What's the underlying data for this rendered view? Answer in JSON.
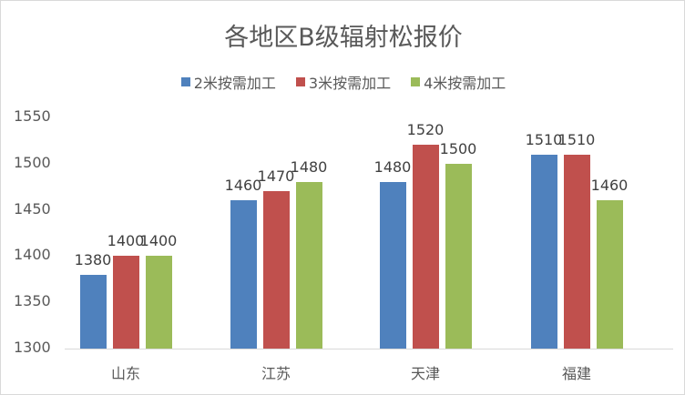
{
  "title": "各地区B级辐射松报价",
  "legend": [
    {
      "label": "2米按需加工",
      "color": "#4f81bd"
    },
    {
      "label": "3米按需加工",
      "color": "#c0504d"
    },
    {
      "label": "4米按需加工",
      "color": "#9bbb59"
    }
  ],
  "yticks": [
    "1550",
    "1500",
    "1450",
    "1400",
    "1350",
    "1300"
  ],
  "chart_data": {
    "type": "bar",
    "title": "各地区B级辐射松报价",
    "categories": [
      "山东",
      "江苏",
      "天津",
      "福建"
    ],
    "series": [
      {
        "name": "2米按需加工",
        "color": "#4f81bd",
        "values": [
          1380,
          1460,
          1480,
          1510
        ]
      },
      {
        "name": "3米按需加工",
        "color": "#c0504d",
        "values": [
          1400,
          1470,
          1520,
          1510
        ]
      },
      {
        "name": "4米按需加工",
        "color": "#9bbb59",
        "values": [
          1400,
          1480,
          1500,
          1460
        ]
      }
    ],
    "xlabel": "",
    "ylabel": "",
    "ylim": [
      1300,
      1550
    ],
    "yticks": [
      1300,
      1350,
      1400,
      1450,
      1500,
      1550
    ],
    "grid": false,
    "legend_position": "top",
    "data_labels": true
  }
}
